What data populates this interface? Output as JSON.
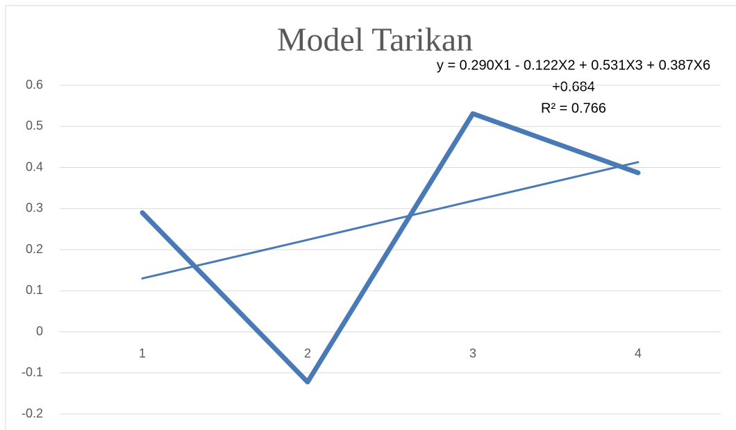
{
  "chart_data": {
    "type": "line",
    "title": "Model Tarikan",
    "categories": [
      "1",
      "2",
      "3",
      "4"
    ],
    "values": [
      0.29,
      -0.122,
      0.531,
      0.387
    ],
    "color": "#4a7ab5",
    "trendline": {
      "values": [
        0.13,
        0.224,
        0.319,
        0.413
      ],
      "color": "#4a7ab5"
    },
    "annotations": [
      "y = 0.290X1 - 0.122X2 + 0.531X3 + 0.387X6",
      "+0.684",
      "R² = 0.766"
    ],
    "ylim": [
      -0.2,
      0.6
    ],
    "yticks": [
      -0.2,
      -0.1,
      0,
      0.1,
      0.2,
      0.3,
      0.4,
      0.5,
      0.6
    ],
    "grid": true
  }
}
